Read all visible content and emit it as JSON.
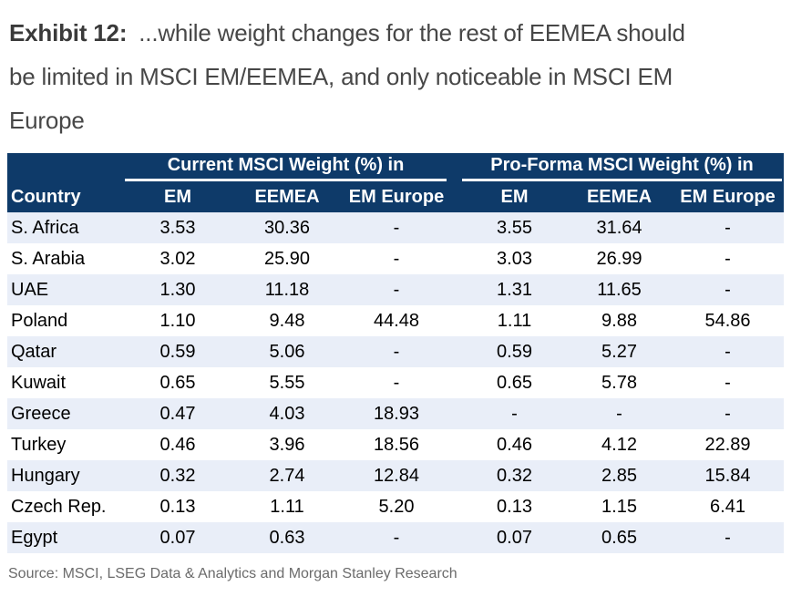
{
  "title": {
    "exhibit_label": "Exhibit 12:",
    "lines": [
      "...while weight changes for the rest of EEMEA should",
      "be limited in MSCI EM/EEMEA, and only noticeable in MSCI EM",
      "Europe"
    ]
  },
  "table": {
    "group_headers": {
      "current": "Current MSCI Weight (%) in",
      "proforma": "Pro-Forma MSCI Weight (%) in"
    },
    "columns": {
      "country": "Country",
      "em1": "EM",
      "eemea1": "EEMEA",
      "emeurope1": "EM Europe",
      "em2": "EM",
      "eemea2": "EEMEA",
      "emeurope2": "EM Europe"
    },
    "rows": [
      {
        "country": "S. Africa",
        "values": [
          "3.53",
          "30.36",
          "-",
          "3.55",
          "31.64",
          "-"
        ]
      },
      {
        "country": "S. Arabia",
        "values": [
          "3.02",
          "25.90",
          "-",
          "3.03",
          "26.99",
          "-"
        ]
      },
      {
        "country": "UAE",
        "values": [
          "1.30",
          "11.18",
          "-",
          "1.31",
          "11.65",
          "-"
        ]
      },
      {
        "country": "Poland",
        "values": [
          "1.10",
          "9.48",
          "44.48",
          "1.11",
          "9.88",
          "54.86"
        ]
      },
      {
        "country": "Qatar",
        "values": [
          "0.59",
          "5.06",
          "-",
          "0.59",
          "5.27",
          "-"
        ]
      },
      {
        "country": "Kuwait",
        "values": [
          "0.65",
          "5.55",
          "-",
          "0.65",
          "5.78",
          "-"
        ]
      },
      {
        "country": "Greece",
        "values": [
          "0.47",
          "4.03",
          "18.93",
          "-",
          "-",
          "-"
        ]
      },
      {
        "country": "Turkey",
        "values": [
          "0.46",
          "3.96",
          "18.56",
          "0.46",
          "4.12",
          "22.89"
        ]
      },
      {
        "country": "Hungary",
        "values": [
          "0.32",
          "2.74",
          "12.84",
          "0.32",
          "2.85",
          "15.84"
        ]
      },
      {
        "country": "Czech Rep.",
        "values": [
          "0.13",
          "1.11",
          "5.20",
          "0.13",
          "1.15",
          "6.41"
        ]
      },
      {
        "country": "Egypt",
        "values": [
          "0.07",
          "0.63",
          "-",
          "0.07",
          "0.65",
          "-"
        ]
      }
    ]
  },
  "source": "Source: MSCI, LSEG Data & Analytics and Morgan Stanley Research",
  "colors": {
    "header_bg": "#0e3a69",
    "stripe_bg": "#e9eef8",
    "title_text": "#474747",
    "source_text": "#6b6b6b"
  }
}
